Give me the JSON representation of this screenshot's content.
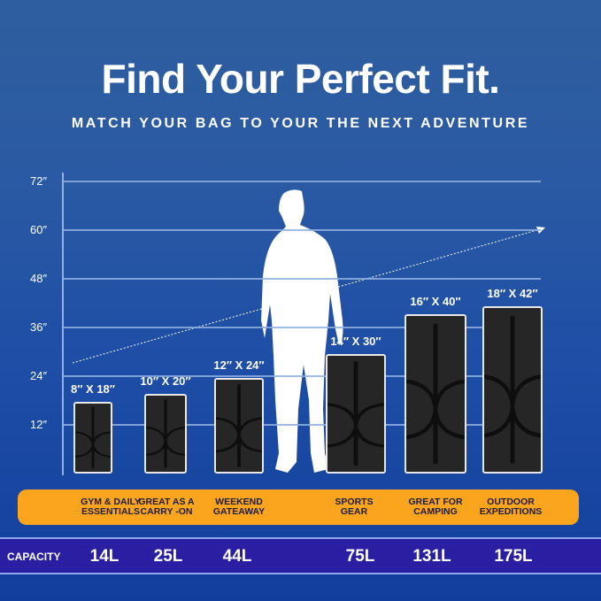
{
  "header": {
    "title": "Find Your Perfect Fit.",
    "subtitle": "MATCH YOUR BAG TO YOUR THE NEXT ADVENTURE"
  },
  "y_axis": {
    "unit": "inches",
    "ticks": [
      "72″",
      "60″",
      "48″",
      "36″",
      "24″",
      "12″"
    ],
    "tick_values": [
      72,
      60,
      48,
      36,
      24,
      12
    ]
  },
  "bags": [
    {
      "dimensions": "8″ X 18″",
      "height_in": 18,
      "use": [
        "GYM & DAILY",
        "ESSENTIALS"
      ],
      "capacity": "14L"
    },
    {
      "dimensions": "10″ X 20″",
      "height_in": 20,
      "use": [
        "GREAT AS A",
        "CARRY -ON"
      ],
      "capacity": "25L"
    },
    {
      "dimensions": "12″ X 24″",
      "height_in": 24,
      "use": [
        "WEEKEND",
        "GATEAWAY"
      ],
      "capacity": "44L"
    },
    {
      "dimensions": "14″ X 30″",
      "height_in": 30,
      "use": [
        "SPORTS",
        "GEAR"
      ],
      "capacity": "75L"
    },
    {
      "dimensions": "16″ X 40″",
      "height_in": 40,
      "use": [
        "GREAT FOR",
        "CAMPING"
      ],
      "capacity": "131L"
    },
    {
      "dimensions": "18″ X 42″",
      "height_in": 42,
      "use": [
        "OUTDOOR",
        "EXPEDITIONS"
      ],
      "capacity": "175L"
    }
  ],
  "capacity_label": "CAPACITY",
  "colors": {
    "band": "#fba41d",
    "capacity_bar": "#2a1fa3",
    "bag": "#262626"
  }
}
